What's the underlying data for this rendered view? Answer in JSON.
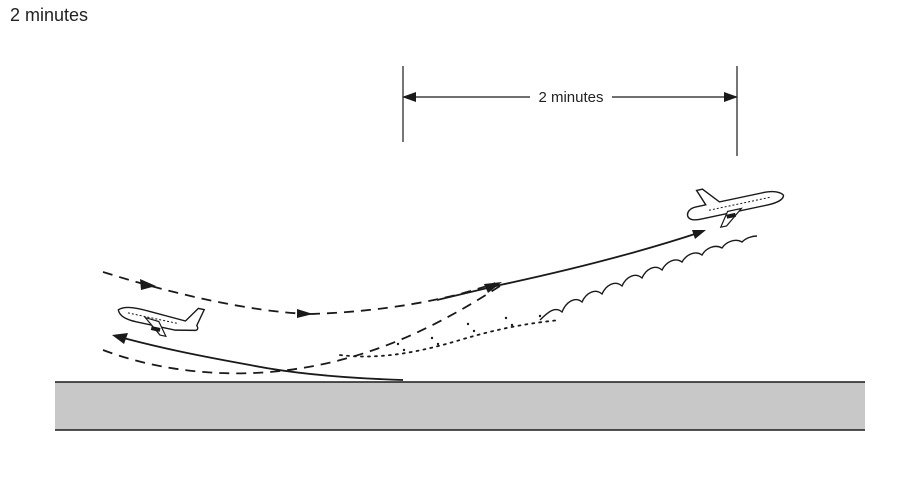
{
  "caption": "2 minutes",
  "dimension_label": "2 minutes",
  "colors": {
    "ink": "#1a1a1a",
    "ground_fill": "#c8c8c8",
    "background": "#ffffff"
  },
  "icons": [
    "airplane-landing-icon",
    "airplane-departing-icon"
  ]
}
